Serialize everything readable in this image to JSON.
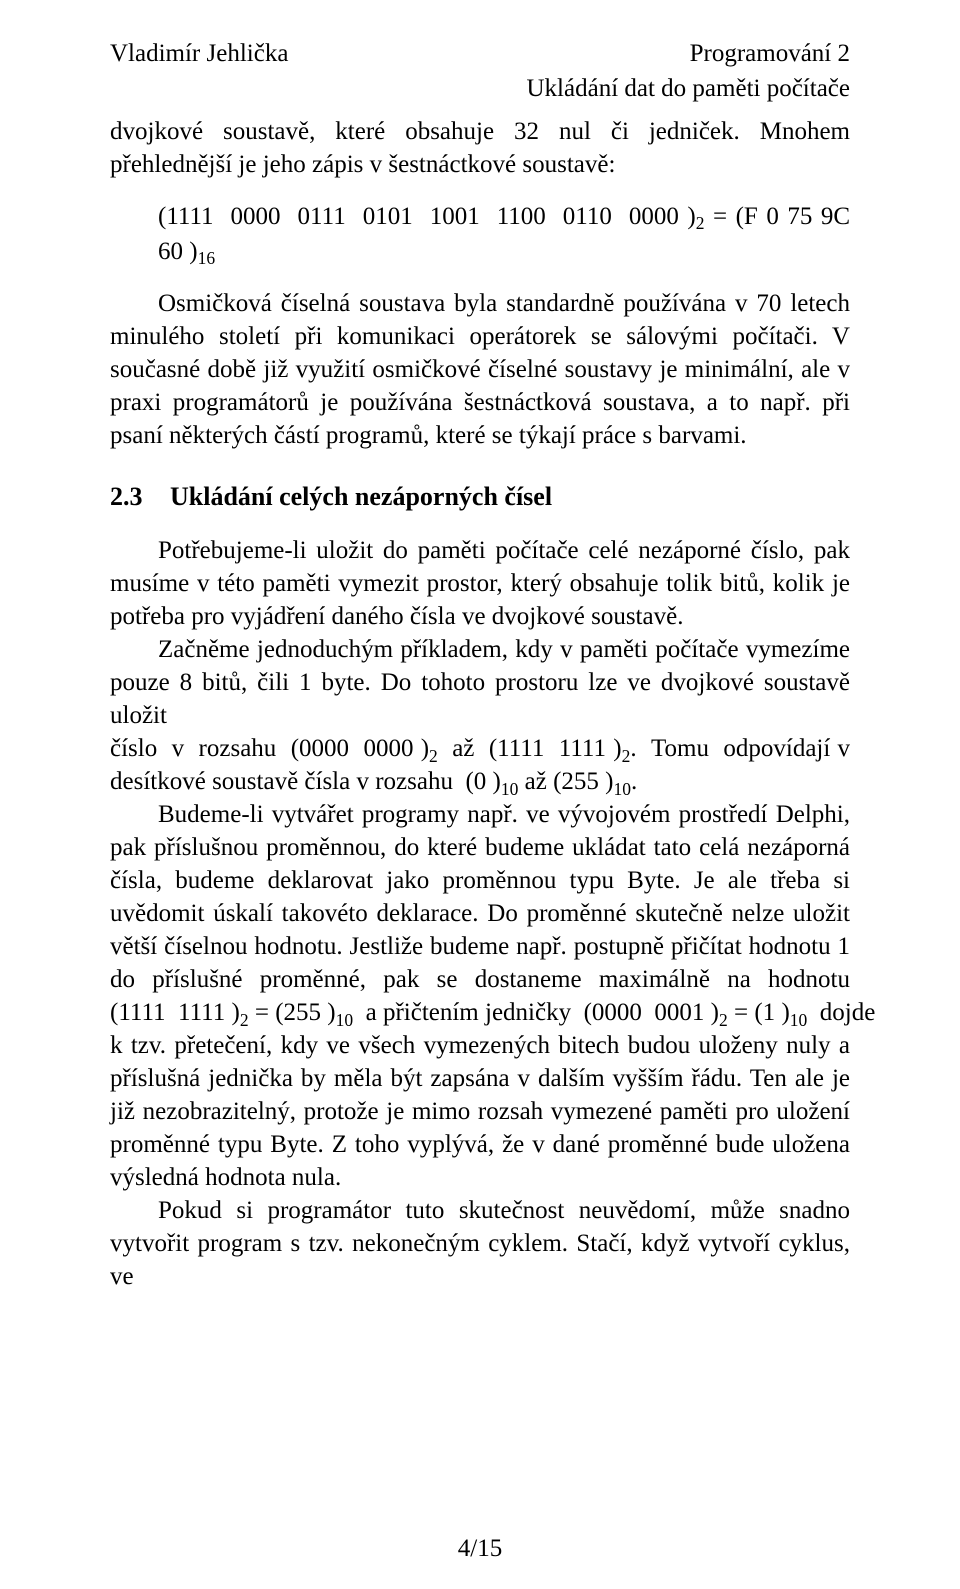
{
  "header": {
    "author": "Vladimír Jehlička",
    "course": "Programování 2",
    "chapter_title": "Ukládání dat do paměti počítače"
  },
  "body": {
    "p1": "dvojkové soustavě, které obsahuje 32 nul či jedniček. Mnohem přehlednější je jeho zápis v šestnáctkové soustavě:",
    "formula1_html": "<span class=\"paren\">(</span>1111&nbsp;&nbsp;0000&nbsp;&nbsp;0111&nbsp;&nbsp;0101&nbsp;&nbsp;1001&nbsp;&nbsp;1100&nbsp;&nbsp;0110&nbsp;&nbsp;0000<span class=\"paren\">&nbsp;)</span><span class=\"ss2\">2</span>&nbsp;= (F&nbsp;0 75 9C 60<span class=\"paren\">&nbsp;)</span><span class=\"ss16\">16</span>",
    "p2": "Osmičková číselná soustava byla standardně používána v 70 letech minulého století při komunikaci operátorek se sálovými počítači. V současné době již využití osmičkové číselné soustavy je minimální, ale v praxi programátorů je používána šestnáctková soustava, a to např. při psaní některých částí programů, které se týkají práce s barvami.",
    "section": {
      "number": "2.3",
      "title": "Ukládání celých nezáporných čísel"
    },
    "p3": "Potřebujeme-li uložit do paměti počítače celé nezáporné číslo, pak musíme v této paměti vymezit prostor, který obsahuje tolik bitů, kolik je potřeba pro vyjádření daného čísla ve dvojkové soustavě.",
    "p4_html": "Začněme jednoduchým příkladem, kdy v paměti počítače vymezíme pouze 8 bitů, čili 1 byte. Do tohoto prostoru lze ve dvojkové soustavě uložit číslo&nbsp;&nbsp;v&nbsp;&nbsp;rozsahu&nbsp;&nbsp;(0000&nbsp;&nbsp;0000<span class=\"paren\">&nbsp;)</span><span class=\"ss2\">2</span>&nbsp;&nbsp;až&nbsp;&nbsp;(1111&nbsp;&nbsp;1111<span class=\"paren\">&nbsp;)</span><span class=\"ss2\">2</span>.&nbsp;&nbsp;Tomu&nbsp;&nbsp;odpovídají v desítkové soustavě čísla v rozsahu&nbsp;&nbsp;(0<span class=\"paren\">&nbsp;)</span><span class=\"ss10\">10</span>&nbsp;až&nbsp;(255<span class=\"paren\">&nbsp;)</span><span class=\"ss10\">10</span>.",
    "p5_html": "Budeme-li vytvářet programy např. ve vývojovém prostředí Delphi, pak příslušnou proměnnou, do které budeme ukládat tato celá nezáporná čísla, budeme deklarovat jako proměnnou typu Byte. Je ale třeba si uvědomit úskalí takovéto deklarace. Do proměnné skutečně nelze uložit větší číselnou hodnotu. Jestliže budeme např. postupně přičítat hodnotu 1 do&nbsp;&nbsp;příslušné&nbsp;&nbsp;proměnné,&nbsp;&nbsp;pak&nbsp;&nbsp;se&nbsp;&nbsp;dostaneme&nbsp;&nbsp;maximálně&nbsp;&nbsp;na&nbsp;&nbsp;hodnotu (1111&nbsp;&nbsp;1111<span class=\"paren\">&nbsp;)</span><span class=\"ss2\">2</span>&nbsp;=&nbsp;(255<span class=\"paren\">&nbsp;)</span><span class=\"ss10\">10</span>&nbsp;&nbsp;a&nbsp;přičtením&nbsp;jedničky&nbsp;&nbsp;(0000&nbsp;&nbsp;0001<span class=\"paren\">&nbsp;)</span><span class=\"ss2\">2</span>&nbsp;=&nbsp;(1<span class=\"paren\">&nbsp;)</span><span class=\"ss10\">10</span>&nbsp;&nbsp;dojde k tzv. přetečení, kdy ve všech vymezených bitech budou uloženy nuly a příslušná jednička by měla být zapsána v dalším vyšším řádu. Ten ale je již nezobrazitelný, protože je mimo rozsah vymezené paměti pro uložení proměnné typu Byte. Z toho vyplývá, že v dané proměnné bude uložena výsledná hodnota nula.",
    "p6": "Pokud si programátor tuto skutečnost neuvědomí, může snadno vytvořit program s tzv. nekonečným cyklem. Stačí, když vytvoří cyklus, ve"
  },
  "footer": {
    "page": "4/15"
  }
}
